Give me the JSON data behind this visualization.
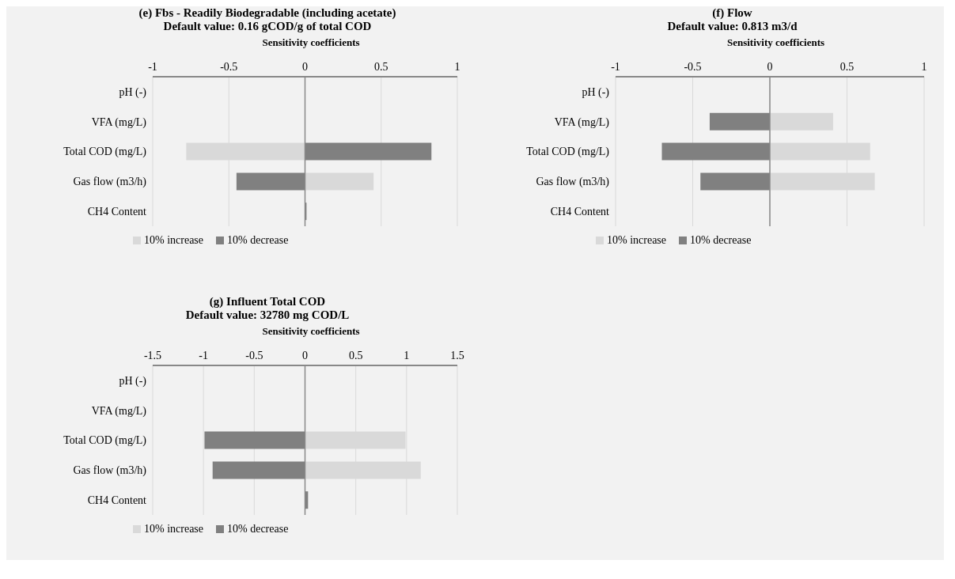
{
  "chart_data": [
    {
      "type": "bar",
      "orientation": "horizontal",
      "title": "(e) Fbs - Readily Biodegradable (including acetate)",
      "subtitle": "Default value: 0.16 gCOD/g of total COD",
      "xlabel": "Sensitivity coefficients",
      "categories": [
        "pH (-)",
        "VFA (mg/L)",
        "Total COD (mg/L)",
        "Gas flow (m3/h)",
        "CH4 Content"
      ],
      "series": [
        {
          "name": "10% increase",
          "color": "#d9d9d9",
          "values": [
            0,
            0,
            -0.78,
            0.45,
            0
          ]
        },
        {
          "name": "10% decrease",
          "color": "#808080",
          "values": [
            0,
            0,
            0.83,
            -0.45,
            0.01
          ]
        }
      ],
      "xlim": [
        -1,
        1
      ],
      "xticks": [
        -1,
        -0.5,
        0,
        0.5,
        1
      ],
      "grid": "x",
      "legend": "bottom",
      "stacked": true
    },
    {
      "type": "bar",
      "orientation": "horizontal",
      "title": "(f) Flow",
      "subtitle": "Default value: 0.813 m3/d",
      "xlabel": "Sensitivity coefficients",
      "categories": [
        "pH (-)",
        "VFA (mg/L)",
        "Total COD (mg/L)",
        "Gas flow (m3/h)",
        "CH4 Content"
      ],
      "series": [
        {
          "name": "10% increase",
          "color": "#d9d9d9",
          "values": [
            0,
            0.41,
            0.65,
            0.68,
            0
          ]
        },
        {
          "name": "10% decrease",
          "color": "#808080",
          "values": [
            0,
            -0.39,
            -0.7,
            -0.45,
            0
          ]
        }
      ],
      "xlim": [
        -1,
        1
      ],
      "xticks": [
        -1,
        -0.5,
        0,
        0.5,
        1
      ],
      "grid": "x",
      "legend": "bottom",
      "stacked": true
    },
    {
      "type": "bar",
      "orientation": "horizontal",
      "title": "(g) Influent Total COD",
      "subtitle": "Default value: 32780 mg COD/L",
      "xlabel": "Sensitivity coefficients",
      "categories": [
        "pH (-)",
        "VFA (mg/L)",
        "Total COD (mg/L)",
        "Gas flow (m3/h)",
        "CH4 Content"
      ],
      "series": [
        {
          "name": "10% increase",
          "color": "#d9d9d9",
          "values": [
            0,
            0,
            0.99,
            1.14,
            0
          ]
        },
        {
          "name": "10% decrease",
          "color": "#808080",
          "values": [
            0,
            0,
            -0.99,
            -0.91,
            0.03
          ]
        }
      ],
      "xlim": [
        -1.5,
        1.5
      ],
      "xticks": [
        -1.5,
        -1,
        -0.5,
        0,
        0.5,
        1,
        1.5
      ],
      "grid": "x",
      "legend": "bottom",
      "stacked": true
    }
  ]
}
